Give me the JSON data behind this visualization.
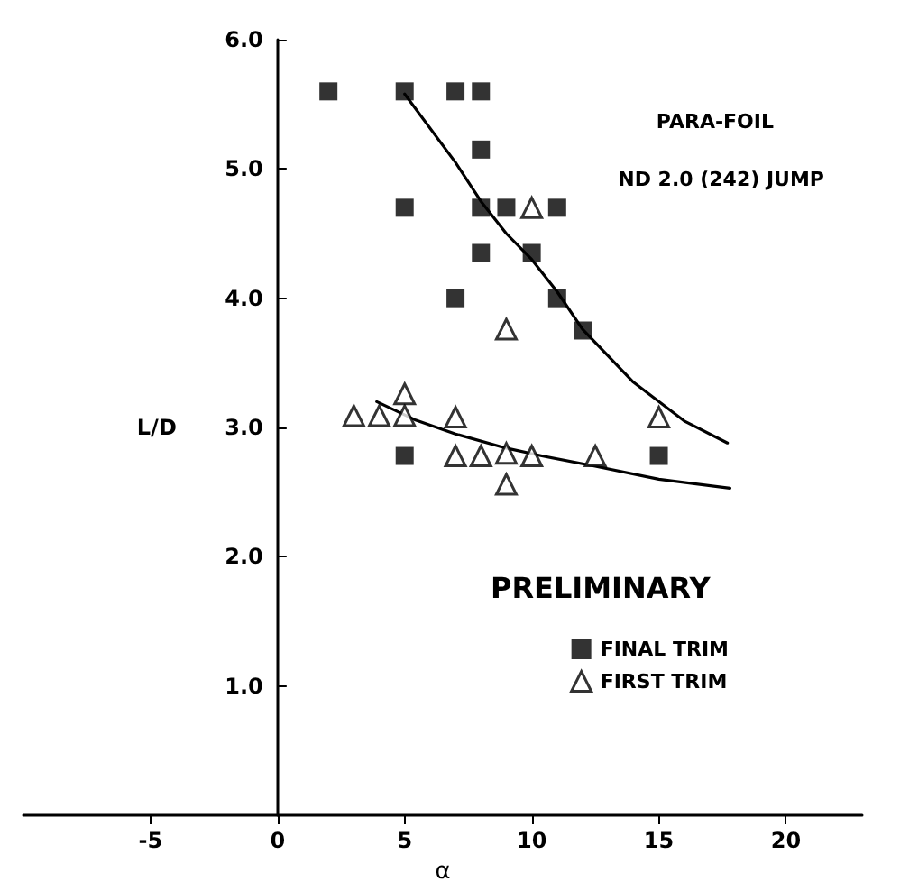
{
  "chart_data": {
    "type": "scatter",
    "xlabel": "α",
    "ylabel": "L/D",
    "annotations": [
      "PARA-FOIL",
      "ND 2.0 (242) JUMP",
      "PRELIMINARY"
    ],
    "xlim": [
      -10,
      23
    ],
    "xticks": [
      -5,
      0,
      5,
      10,
      15,
      20
    ],
    "ylim": [
      0,
      6
    ],
    "yticks": [
      {
        "value": 1,
        "label": "1.0"
      },
      {
        "value": 2,
        "label": "2.0"
      },
      {
        "value": 3,
        "label": "3.0"
      },
      {
        "value": 4,
        "label": "4.0"
      },
      {
        "value": 5,
        "label": "5.0"
      },
      {
        "value": 6,
        "label": "6.0"
      }
    ],
    "legend": "bottom right",
    "series": [
      {
        "name": "FINAL TRIM",
        "color": "#000000",
        "marker": "square",
        "x": [
          2,
          5,
          7,
          8,
          8,
          5,
          8,
          9,
          11,
          8,
          10,
          7,
          11,
          12,
          5,
          15
        ],
        "values": [
          5.6,
          5.6,
          5.6,
          5.6,
          5.15,
          4.7,
          4.7,
          4.7,
          4.7,
          4.35,
          4.35,
          4.0,
          4.0,
          3.75,
          2.78,
          2.78
        ]
      },
      {
        "name": "FIRST TRIM",
        "color": "#000000",
        "marker": "triangle",
        "x": [
          10,
          9,
          3,
          4,
          5,
          5,
          7,
          7,
          8,
          9,
          10,
          9,
          15,
          12.5
        ],
        "values": [
          4.7,
          3.76,
          3.09,
          3.09,
          3.09,
          3.26,
          3.08,
          2.78,
          2.78,
          2.8,
          2.78,
          2.56,
          3.08,
          2.78
        ]
      },
      {
        "type": "line",
        "color": "#000000",
        "marker": "none",
        "line_style": "solid",
        "x": [
          5,
          7,
          8,
          9,
          10,
          11,
          12,
          14,
          16,
          17.7
        ],
        "values": [
          5.58,
          5.05,
          4.75,
          4.5,
          4.3,
          4.05,
          3.76,
          3.35,
          3.05,
          2.88
        ]
      },
      {
        "type": "line",
        "color": "#000000",
        "marker": "none",
        "line_style": "solid",
        "x": [
          3.9,
          5.4,
          7,
          9,
          10.4,
          12.5,
          15,
          17.8
        ],
        "values": [
          3.2,
          3.06,
          2.95,
          2.84,
          2.78,
          2.7,
          2.6,
          2.53
        ]
      }
    ]
  }
}
